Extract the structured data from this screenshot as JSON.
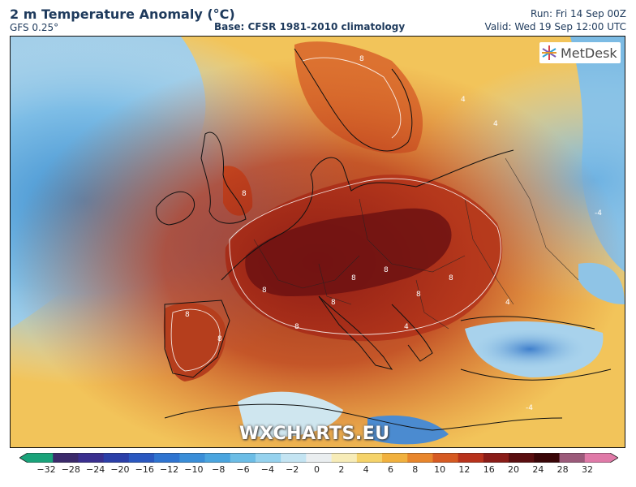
{
  "header": {
    "title": "2 m Temperature Anomaly (°C)",
    "model": "GFS 0.25°",
    "base": "Base: CFSR 1981-2010 climatology",
    "run": "Run: Fri 14 Sep 00Z",
    "valid": "Valid: Wed 19 Sep 12:00 UTC"
  },
  "logo": {
    "text": "MetDesk",
    "icon": "metdesk-star-icon"
  },
  "watermark": "WXCHARTS.EU",
  "colorbar": {
    "ticks": [
      "−32",
      "−28",
      "−24",
      "−20",
      "−16",
      "−12",
      "−10",
      "−8",
      "−6",
      "−4",
      "−2",
      "0",
      "2",
      "4",
      "6",
      "8",
      "10",
      "12",
      "16",
      "20",
      "24",
      "28",
      "32"
    ],
    "colors": [
      "#1aa37a",
      "#3b2a6b",
      "#3a2f8f",
      "#2b3fa8",
      "#2a58c0",
      "#2f74d0",
      "#3a8ed8",
      "#4aa5df",
      "#6cbde6",
      "#96d2ee",
      "#c4e4f2",
      "#eaeef0",
      "#f7ecb8",
      "#f5d36a",
      "#f1b13e",
      "#e8862c",
      "#d65a22",
      "#b8321c",
      "#8a1c18",
      "#5a0e10",
      "#3a0608",
      "#9b5a7a",
      "#e07aa8"
    ]
  },
  "map_labels": [
    "8",
    "8",
    "8",
    "8",
    "8",
    "8",
    "8",
    "8",
    "8",
    "8",
    "8",
    "4",
    "4",
    "4",
    "4",
    "-4",
    "-4"
  ],
  "colors": {
    "sea_cold": "#6aaedc",
    "sea_mild": "#a8d2ec",
    "warm": "#f2c14e",
    "hot": "#c8461f",
    "very_hot": "#7a1414"
  }
}
